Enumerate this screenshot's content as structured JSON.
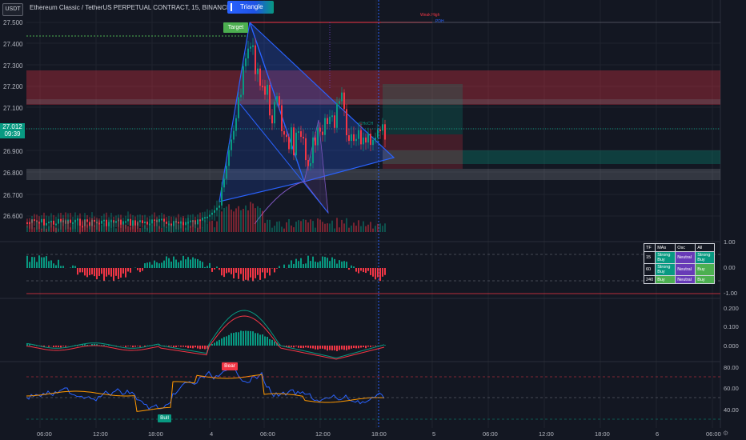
{
  "header": {
    "currency_badge": "USDT",
    "title": "Ethereum Classic / TetherUS PERPETUAL CONTRACT, 15, BINANCE",
    "pattern_button": "Triangle"
  },
  "price_axis": {
    "labels": [
      "27.500",
      "27.400",
      "27.300",
      "27.200",
      "27.100",
      "27.000",
      "26.900",
      "26.800",
      "26.700",
      "26.600"
    ],
    "current_price": "27.012",
    "countdown": "09:39"
  },
  "annotations": {
    "target": "Target",
    "bear": "Bear",
    "bull": "Bull",
    "choch": "CHoCH",
    "weak_high": "Weak High",
    "pdh": "PDH"
  },
  "osc_axis": {
    "panel1": [
      "1.00",
      "0.00",
      "-1.00"
    ],
    "panel2": [
      "0.200",
      "0.100",
      "0.000"
    ],
    "panel3": [
      "80.00",
      "60.00",
      "40.00"
    ]
  },
  "time_axis": [
    "06:00",
    "12:00",
    "18:00",
    "4",
    "06:00",
    "12:00",
    "18:00",
    "5",
    "06:00",
    "12:00",
    "18:00",
    "6",
    "06:00"
  ],
  "mtf_table": {
    "headers": [
      "TF",
      "MAs",
      "Osc",
      "All"
    ],
    "rows": [
      {
        "tf": "15",
        "mas": "Strong Buy",
        "osc": "Neutral",
        "all": "Strong Buy"
      },
      {
        "tf": "60",
        "mas": "Strong Buy",
        "osc": "Neutral",
        "all": "Buy"
      },
      {
        "tf": "240",
        "mas": "Buy",
        "osc": "Neutral",
        "all": "Buy"
      }
    ]
  },
  "colors": {
    "background": "#131722",
    "up": "#089981",
    "down": "#f23645",
    "triangle": "#2962ff",
    "target": "#4caf50"
  }
}
